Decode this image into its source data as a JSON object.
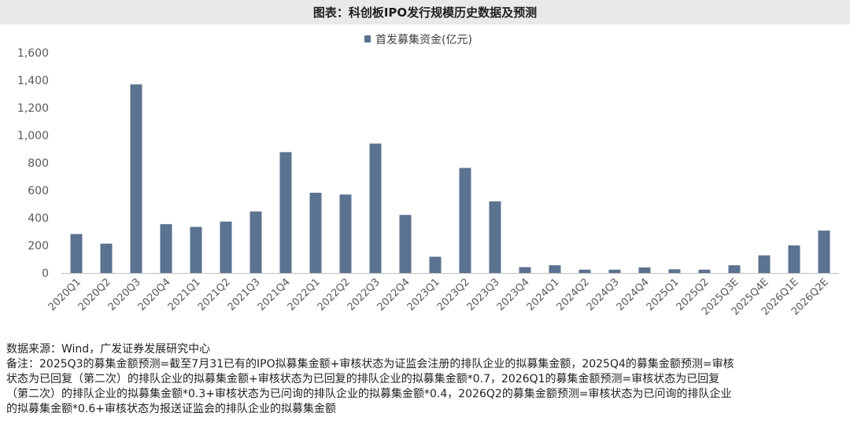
{
  "title": "图表：科创板IPO发行规模历史数据及预测",
  "chart_data": {
    "type": "bar",
    "legend": [
      "首发募集资金(亿元)"
    ],
    "legend_position": "top",
    "series_color": "#5b7290",
    "categories": [
      "2020Q1",
      "2020Q2",
      "2020Q3",
      "2020Q4",
      "2021Q1",
      "2021Q2",
      "2021Q3",
      "2021Q4",
      "2022Q1",
      "2022Q2",
      "2022Q3",
      "2022Q4",
      "2023Q1",
      "2023Q2",
      "2023Q3",
      "2023Q4",
      "2024Q1",
      "2024Q2",
      "2024Q3",
      "2024Q4",
      "2025Q1",
      "2025Q2",
      "2025Q3E",
      "2025Q4E",
      "2026Q1E",
      "2026Q2E"
    ],
    "series": [
      {
        "name": "首发募集资金(亿元)",
        "values": [
          283,
          213,
          1370,
          355,
          335,
          373,
          447,
          878,
          583,
          570,
          940,
          422,
          118,
          763,
          520,
          42,
          56,
          24,
          24,
          40,
          27,
          24,
          56,
          128,
          200,
          308
        ]
      }
    ],
    "y_ticks": [
      "0",
      "200",
      "400",
      "600",
      "800",
      "1,000",
      "1,200",
      "1,400",
      "1,600"
    ],
    "ylim": [
      0,
      1600
    ],
    "grid": false
  },
  "source": "数据来源：Wind，广发证券发展研究中心",
  "note_lines": [
    "备注：2025Q3的募集金额预测=截至7月31已有的IPO拟募集金额+审核状态为证监会注册的排队企业的拟募集金额，2025Q4的募集金额预测=审核",
    "状态为已回复（第二次）的排队企业的拟募集金额+审核状态为已回复的排队企业的拟募集金额*0.7，2026Q1的募集金额预测=审核状态为已回复",
    "（第二次）的排队企业的拟募集金额*0.3+审核状态为已问询的排队企业的拟募集金额*0.4，2026Q2的募集金额预测=审核状态为已问询的排队企业",
    "的拟募集金额*0.6+审核状态为报送证监会的排队企业的拟募集金额"
  ]
}
